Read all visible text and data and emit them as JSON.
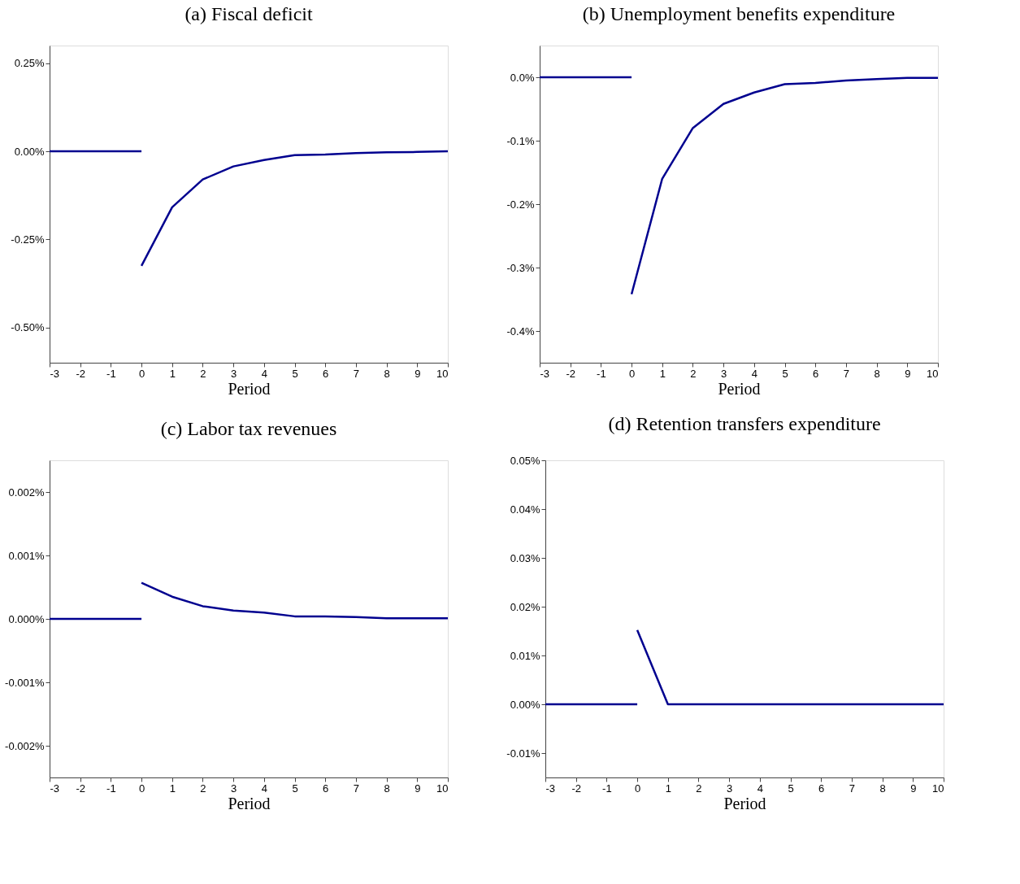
{
  "chart_data": [
    {
      "type": "line",
      "title": "(a)  Fiscal deficit",
      "xlabel": "Period",
      "xlim": [
        -3,
        10
      ],
      "xticks": [
        -3,
        -2,
        -1,
        0,
        1,
        2,
        3,
        4,
        5,
        6,
        7,
        8,
        9,
        10
      ],
      "ylim": [
        -0.6,
        0.3
      ],
      "yticks": [
        {
          "value": 0.25,
          "label": "0.25%"
        },
        {
          "value": 0,
          "label": "0.00%"
        },
        {
          "value": -0.25,
          "label": "-0.25%"
        },
        {
          "value": -0.5,
          "label": "-0.50%"
        }
      ],
      "grid": false,
      "legend": false,
      "line_style": "solid",
      "series": [
        {
          "color": "#00008f",
          "x": [
            -3,
            -2,
            -1,
            0
          ],
          "values": [
            0,
            0,
            0,
            0
          ]
        },
        {
          "color": "#00008f",
          "x": [
            0,
            1,
            2,
            3,
            4,
            5,
            6,
            7,
            8,
            9,
            10
          ],
          "values": [
            -0.325,
            -0.159,
            -0.08,
            -0.043,
            -0.025,
            -0.011,
            -0.009,
            -0.005,
            -0.003,
            -0.002,
            0.0
          ]
        }
      ]
    },
    {
      "type": "line",
      "title": "(b)  Unemployment benefits expenditure",
      "xlabel": "Period",
      "xlim": [
        -3,
        10
      ],
      "xticks": [
        -3,
        -2,
        -1,
        0,
        1,
        2,
        3,
        4,
        5,
        6,
        7,
        8,
        9,
        10
      ],
      "ylim": [
        -0.45,
        0.05
      ],
      "yticks": [
        {
          "value": 0,
          "label": "0.0%"
        },
        {
          "value": -0.1,
          "label": "-0.1%"
        },
        {
          "value": -0.2,
          "label": "-0.2%"
        },
        {
          "value": -0.3,
          "label": "-0.3%"
        },
        {
          "value": -0.4,
          "label": "-0.4%"
        }
      ],
      "grid": false,
      "legend": false,
      "line_style": "solid",
      "series": [
        {
          "color": "#00008f",
          "x": [
            -3,
            -2,
            -1,
            0
          ],
          "values": [
            0,
            0,
            0,
            0
          ]
        },
        {
          "color": "#00008f",
          "x": [
            0,
            1,
            2,
            3,
            4,
            5,
            6,
            7,
            8,
            9,
            10
          ],
          "values": [
            -0.342,
            -0.16,
            -0.08,
            -0.042,
            -0.024,
            -0.011,
            -0.009,
            -0.005,
            -0.003,
            -0.001,
            -0.001
          ]
        }
      ]
    },
    {
      "type": "line",
      "title": "(c)  Labor tax revenues",
      "xlabel": "Period",
      "xlim": [
        -3,
        10
      ],
      "xticks": [
        -3,
        -2,
        -1,
        0,
        1,
        2,
        3,
        4,
        5,
        6,
        7,
        8,
        9,
        10
      ],
      "ylim": [
        -0.0025,
        0.0025
      ],
      "yticks": [
        {
          "value": 0.002,
          "label": "0.002%"
        },
        {
          "value": 0.001,
          "label": "0.001%"
        },
        {
          "value": 0,
          "label": "0.000%"
        },
        {
          "value": -0.001,
          "label": "-0.001%"
        },
        {
          "value": -0.002,
          "label": "-0.002%"
        }
      ],
      "grid": false,
      "legend": false,
      "line_style": "solid",
      "series": [
        {
          "color": "#00008f",
          "x": [
            -3,
            -2,
            -1,
            0
          ],
          "values": [
            0,
            0,
            0,
            0
          ]
        },
        {
          "color": "#00008f",
          "x": [
            0,
            1,
            2,
            3,
            4,
            5,
            6,
            7,
            8,
            9,
            10
          ],
          "values": [
            0.00057,
            0.00035,
            0.0002,
            0.00013,
            0.0001,
            4e-05,
            4e-05,
            3e-05,
            1e-05,
            1e-05,
            1e-05
          ]
        }
      ]
    },
    {
      "type": "line",
      "title": "(d)  Retention transfers expenditure",
      "xlabel": "Period",
      "xlim": [
        -3,
        10
      ],
      "xticks": [
        -3,
        -2,
        -1,
        0,
        1,
        2,
        3,
        4,
        5,
        6,
        7,
        8,
        9,
        10
      ],
      "ylim": [
        -0.015,
        0.05
      ],
      "yticks": [
        {
          "value": 0.05,
          "label": "0.05%"
        },
        {
          "value": 0.04,
          "label": "0.04%"
        },
        {
          "value": 0.03,
          "label": "0.03%"
        },
        {
          "value": 0.02,
          "label": "0.02%"
        },
        {
          "value": 0.01,
          "label": "0.01%"
        },
        {
          "value": 0,
          "label": "0.00%"
        },
        {
          "value": -0.01,
          "label": "-0.01%"
        }
      ],
      "grid": false,
      "legend": false,
      "line_style": "solid",
      "series": [
        {
          "color": "#00008f",
          "x": [
            -3,
            -2,
            -1,
            0
          ],
          "values": [
            0,
            0,
            0,
            0
          ]
        },
        {
          "color": "#00008f",
          "x": [
            0,
            1,
            2,
            3,
            4,
            5,
            6,
            7,
            8,
            9,
            10
          ],
          "values": [
            0.0152,
            0,
            0,
            0,
            0,
            0,
            0,
            0,
            0,
            0,
            0
          ]
        }
      ]
    }
  ]
}
